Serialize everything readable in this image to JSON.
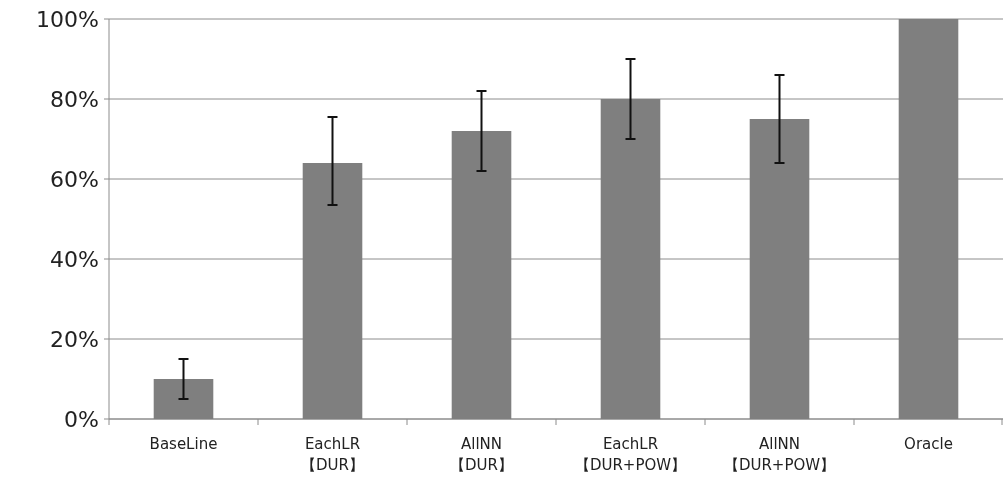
{
  "chart_data": {
    "type": "bar",
    "categories": [
      "BaseLine",
      "EachLR\n【DUR】",
      "AllNN\n【DUR】",
      "EachLR\n【DUR+POW】",
      "AllNN\n【DUR+POW】",
      "Oracle"
    ],
    "values": [
      10,
      64,
      72,
      80,
      75,
      100
    ],
    "errors": [
      [
        5,
        15
      ],
      [
        53.5,
        75.5
      ],
      [
        62,
        82
      ],
      [
        70,
        90
      ],
      [
        64,
        86
      ],
      null
    ],
    "color": "#7f7f7f",
    "ylim": [
      0,
      100
    ],
    "yticks": [
      {
        "value": 0,
        "label": "0%"
      },
      {
        "value": 20,
        "label": "20%"
      },
      {
        "value": 40,
        "label": "40%"
      },
      {
        "value": 60,
        "label": "60%"
      },
      {
        "value": 80,
        "label": "80%"
      },
      {
        "value": 100,
        "label": "100%"
      }
    ],
    "grid": "y"
  }
}
